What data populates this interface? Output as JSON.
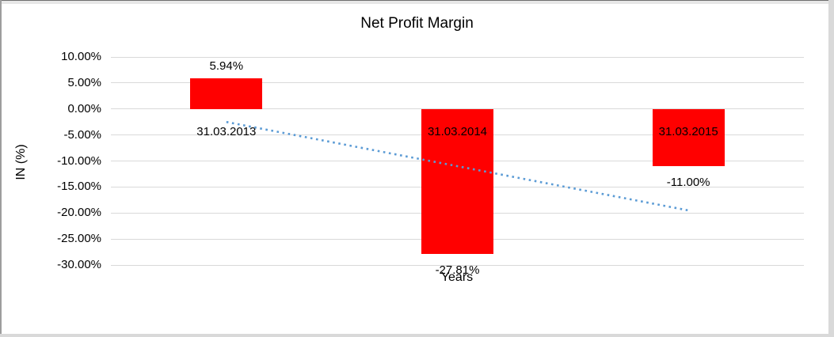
{
  "chart_data": {
    "type": "bar",
    "title": "Net Profit Margin",
    "xlabel": "Years",
    "ylabel": "IN (%)",
    "categories": [
      "31.03.2013",
      "31.03.2014",
      "31.03.2015"
    ],
    "values": [
      5.94,
      -27.81,
      -11.0
    ],
    "data_labels": [
      "5.94%",
      "-27.81%",
      "-11.00%"
    ],
    "ylim": [
      -30,
      10
    ],
    "yticks": [
      10,
      5,
      0,
      -5,
      -10,
      -15,
      -20,
      -25,
      -30
    ],
    "ytick_labels": [
      "10.00%",
      "5.00%",
      "0.00%",
      "-5.00%",
      "-10.00%",
      "-15.00%",
      "-20.00%",
      "-25.00%",
      "-30.00%"
    ],
    "grid": true,
    "legend": "none",
    "bar_color": "#ff0000",
    "gridline_color": "#d9d9d9",
    "trendline": {
      "type": "linear",
      "style": "dotted",
      "color": "#5b9bd5",
      "y_start": -2.5,
      "y_end": -19.5
    }
  }
}
